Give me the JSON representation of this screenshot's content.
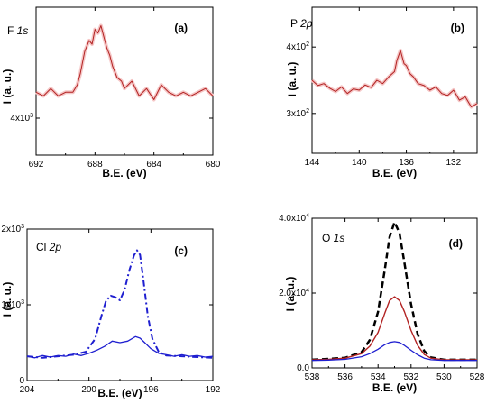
{
  "figure": {
    "page_bg": "#ffffff",
    "colors": {
      "red": "#b22222",
      "red_fill": "#f5c6c6",
      "blue": "#1f1fd0",
      "black": "#000000"
    }
  },
  "chart_data": [
    {
      "id": "a",
      "type": "line",
      "panel_label": "(a)",
      "title_element": "F",
      "title_orbital": "1s",
      "xlabel": "B.E. (eV)",
      "ylabel": "I (a. u.)",
      "xlim": [
        692,
        680
      ],
      "xticks": [
        692,
        688,
        684,
        680
      ],
      "xtick_labels": [
        "692",
        "688",
        "684",
        "680"
      ],
      "ylim": [
        3.9,
        4.3
      ],
      "yticks": [
        4.0
      ],
      "ytick_labels": [
        "4x10³"
      ],
      "series": [
        {
          "style": "red-noisy",
          "points": [
            [
              692,
              4.07
            ],
            [
              691.5,
              4.06
            ],
            [
              691,
              4.08
            ],
            [
              690.5,
              4.06
            ],
            [
              690,
              4.07
            ],
            [
              689.5,
              4.07
            ],
            [
              689.2,
              4.09
            ],
            [
              689,
              4.12
            ],
            [
              688.7,
              4.18
            ],
            [
              688.4,
              4.21
            ],
            [
              688.2,
              4.2
            ],
            [
              688,
              4.24
            ],
            [
              687.8,
              4.23
            ],
            [
              687.6,
              4.25
            ],
            [
              687.4,
              4.22
            ],
            [
              687.2,
              4.19
            ],
            [
              687,
              4.17
            ],
            [
              686.8,
              4.14
            ],
            [
              686.5,
              4.11
            ],
            [
              686.2,
              4.1
            ],
            [
              686,
              4.08
            ],
            [
              685.5,
              4.1
            ],
            [
              685,
              4.06
            ],
            [
              684.5,
              4.08
            ],
            [
              684,
              4.05
            ],
            [
              683.5,
              4.09
            ],
            [
              683,
              4.07
            ],
            [
              682.5,
              4.06
            ],
            [
              682,
              4.07
            ],
            [
              681.5,
              4.06
            ],
            [
              681,
              4.07
            ],
            [
              680.5,
              4.08
            ],
            [
              680,
              4.06
            ]
          ]
        }
      ]
    },
    {
      "id": "b",
      "type": "line",
      "panel_label": "(b)",
      "title_element": "P",
      "title_orbital": "2p",
      "xlabel": "B.E. (eV)",
      "ylabel": "I (a. u.)",
      "xlim": [
        144,
        130
      ],
      "xticks": [
        144,
        140,
        136,
        132
      ],
      "xtick_labels": [
        "144",
        "140",
        "136",
        "132"
      ],
      "ylim": [
        2.4,
        4.6
      ],
      "yticks": [
        3,
        4
      ],
      "ytick_labels": [
        "3x10²",
        "4x10²"
      ],
      "series": [
        {
          "style": "red-noisy",
          "points": [
            [
              144,
              3.5
            ],
            [
              143.5,
              3.42
            ],
            [
              143,
              3.45
            ],
            [
              142.5,
              3.38
            ],
            [
              142,
              3.33
            ],
            [
              141.5,
              3.4
            ],
            [
              141,
              3.3
            ],
            [
              140.5,
              3.37
            ],
            [
              140,
              3.35
            ],
            [
              139.5,
              3.43
            ],
            [
              139,
              3.39
            ],
            [
              138.5,
              3.5
            ],
            [
              138,
              3.45
            ],
            [
              137.5,
              3.55
            ],
            [
              137,
              3.63
            ],
            [
              136.8,
              3.8
            ],
            [
              136.5,
              3.95
            ],
            [
              136.2,
              3.75
            ],
            [
              136,
              3.72
            ],
            [
              135.7,
              3.6
            ],
            [
              135.4,
              3.55
            ],
            [
              135,
              3.45
            ],
            [
              134.5,
              3.42
            ],
            [
              134,
              3.35
            ],
            [
              133.5,
              3.4
            ],
            [
              133,
              3.3
            ],
            [
              132.5,
              3.27
            ],
            [
              132,
              3.35
            ],
            [
              131.5,
              3.2
            ],
            [
              131,
              3.25
            ],
            [
              130.5,
              3.1
            ],
            [
              130,
              3.15
            ]
          ]
        }
      ]
    },
    {
      "id": "c",
      "type": "line",
      "panel_label": "(c)",
      "title_element": "Cl",
      "title_orbital": "2p",
      "xlabel": "B.E. (eV)",
      "ylabel": "I (a. u.)",
      "xlim": [
        204,
        192
      ],
      "xticks": [
        204,
        200,
        196,
        192
      ],
      "xtick_labels": [
        "204",
        "200",
        "196",
        "192"
      ],
      "ylim": [
        0,
        2
      ],
      "yticks": [
        0,
        1,
        2
      ],
      "ytick_labels": [
        "0",
        "1x10³",
        "2x10³"
      ],
      "series": [
        {
          "style": "blue-dashdot",
          "points": [
            [
              204,
              0.32
            ],
            [
              203,
              0.3
            ],
            [
              202,
              0.32
            ],
            [
              201,
              0.34
            ],
            [
              200.2,
              0.38
            ],
            [
              199.6,
              0.55
            ],
            [
              199.2,
              0.85
            ],
            [
              198.9,
              1.05
            ],
            [
              198.6,
              1.12
            ],
            [
              198.3,
              1.1
            ],
            [
              198,
              1.06
            ],
            [
              197.7,
              1.2
            ],
            [
              197.4,
              1.45
            ],
            [
              197.1,
              1.65
            ],
            [
              196.9,
              1.72
            ],
            [
              196.7,
              1.66
            ],
            [
              196.5,
              1.35
            ],
            [
              196.2,
              0.85
            ],
            [
              195.9,
              0.55
            ],
            [
              195.5,
              0.38
            ],
            [
              195,
              0.33
            ],
            [
              194,
              0.32
            ],
            [
              193,
              0.31
            ],
            [
              192,
              0.3
            ]
          ]
        },
        {
          "style": "blue-noisy",
          "points": [
            [
              204,
              0.32
            ],
            [
              203.5,
              0.3
            ],
            [
              203,
              0.33
            ],
            [
              202.5,
              0.31
            ],
            [
              202,
              0.33
            ],
            [
              201.5,
              0.32
            ],
            [
              201,
              0.35
            ],
            [
              200.5,
              0.33
            ],
            [
              200,
              0.36
            ],
            [
              199.5,
              0.4
            ],
            [
              199,
              0.45
            ],
            [
              198.5,
              0.52
            ],
            [
              198,
              0.5
            ],
            [
              197.5,
              0.52
            ],
            [
              197,
              0.58
            ],
            [
              196.7,
              0.56
            ],
            [
              196.4,
              0.5
            ],
            [
              196,
              0.42
            ],
            [
              195.5,
              0.36
            ],
            [
              195,
              0.34
            ],
            [
              194.5,
              0.32
            ],
            [
              194,
              0.34
            ],
            [
              193.5,
              0.32
            ],
            [
              193,
              0.33
            ],
            [
              192.5,
              0.31
            ],
            [
              192,
              0.32
            ]
          ]
        }
      ]
    },
    {
      "id": "d",
      "type": "line",
      "panel_label": "(d)",
      "title_element": "O",
      "title_orbital": "1s",
      "xlabel": "B.E. (eV)",
      "ylabel": "I (a. u.)",
      "xlim": [
        538,
        528
      ],
      "xticks": [
        538,
        536,
        534,
        532,
        530,
        528
      ],
      "xtick_labels": [
        "538",
        "536",
        "534",
        "532",
        "530",
        "528"
      ],
      "ylim": [
        0,
        4
      ],
      "yticks": [
        0,
        2,
        4
      ],
      "ytick_labels": [
        "0.0",
        "2.0x10⁴",
        "4.0x10⁴"
      ],
      "series": [
        {
          "style": "black-dashed",
          "points": [
            [
              538,
              0.22
            ],
            [
              537,
              0.24
            ],
            [
              536,
              0.27
            ],
            [
              535,
              0.42
            ],
            [
              534.5,
              0.75
            ],
            [
              534,
              1.5
            ],
            [
              533.6,
              2.6
            ],
            [
              533.3,
              3.5
            ],
            [
              533,
              3.9
            ],
            [
              532.7,
              3.6
            ],
            [
              532.4,
              2.8
            ],
            [
              532,
              1.7
            ],
            [
              531.6,
              0.9
            ],
            [
              531.2,
              0.45
            ],
            [
              530.8,
              0.28
            ],
            [
              530,
              0.22
            ],
            [
              529,
              0.22
            ],
            [
              528,
              0.22
            ]
          ]
        },
        {
          "style": "red",
          "points": [
            [
              538,
              0.22
            ],
            [
              537,
              0.23
            ],
            [
              536,
              0.26
            ],
            [
              535,
              0.38
            ],
            [
              534.5,
              0.58
            ],
            [
              534,
              0.95
            ],
            [
              533.6,
              1.45
            ],
            [
              533.3,
              1.8
            ],
            [
              533,
              1.9
            ],
            [
              532.7,
              1.8
            ],
            [
              532.4,
              1.5
            ],
            [
              532,
              1.0
            ],
            [
              531.6,
              0.6
            ],
            [
              531.2,
              0.36
            ],
            [
              530.8,
              0.26
            ],
            [
              530,
              0.22
            ],
            [
              529,
              0.22
            ],
            [
              528,
              0.22
            ]
          ]
        },
        {
          "style": "blue",
          "points": [
            [
              538,
              0.2
            ],
            [
              537,
              0.21
            ],
            [
              536,
              0.23
            ],
            [
              535,
              0.3
            ],
            [
              534.5,
              0.38
            ],
            [
              534,
              0.5
            ],
            [
              533.6,
              0.62
            ],
            [
              533.3,
              0.68
            ],
            [
              533,
              0.7
            ],
            [
              532.7,
              0.68
            ],
            [
              532.4,
              0.6
            ],
            [
              532,
              0.47
            ],
            [
              531.6,
              0.35
            ],
            [
              531.2,
              0.26
            ],
            [
              530.8,
              0.22
            ],
            [
              530,
              0.2
            ],
            [
              529,
              0.2
            ],
            [
              528,
              0.2
            ]
          ]
        }
      ]
    }
  ]
}
